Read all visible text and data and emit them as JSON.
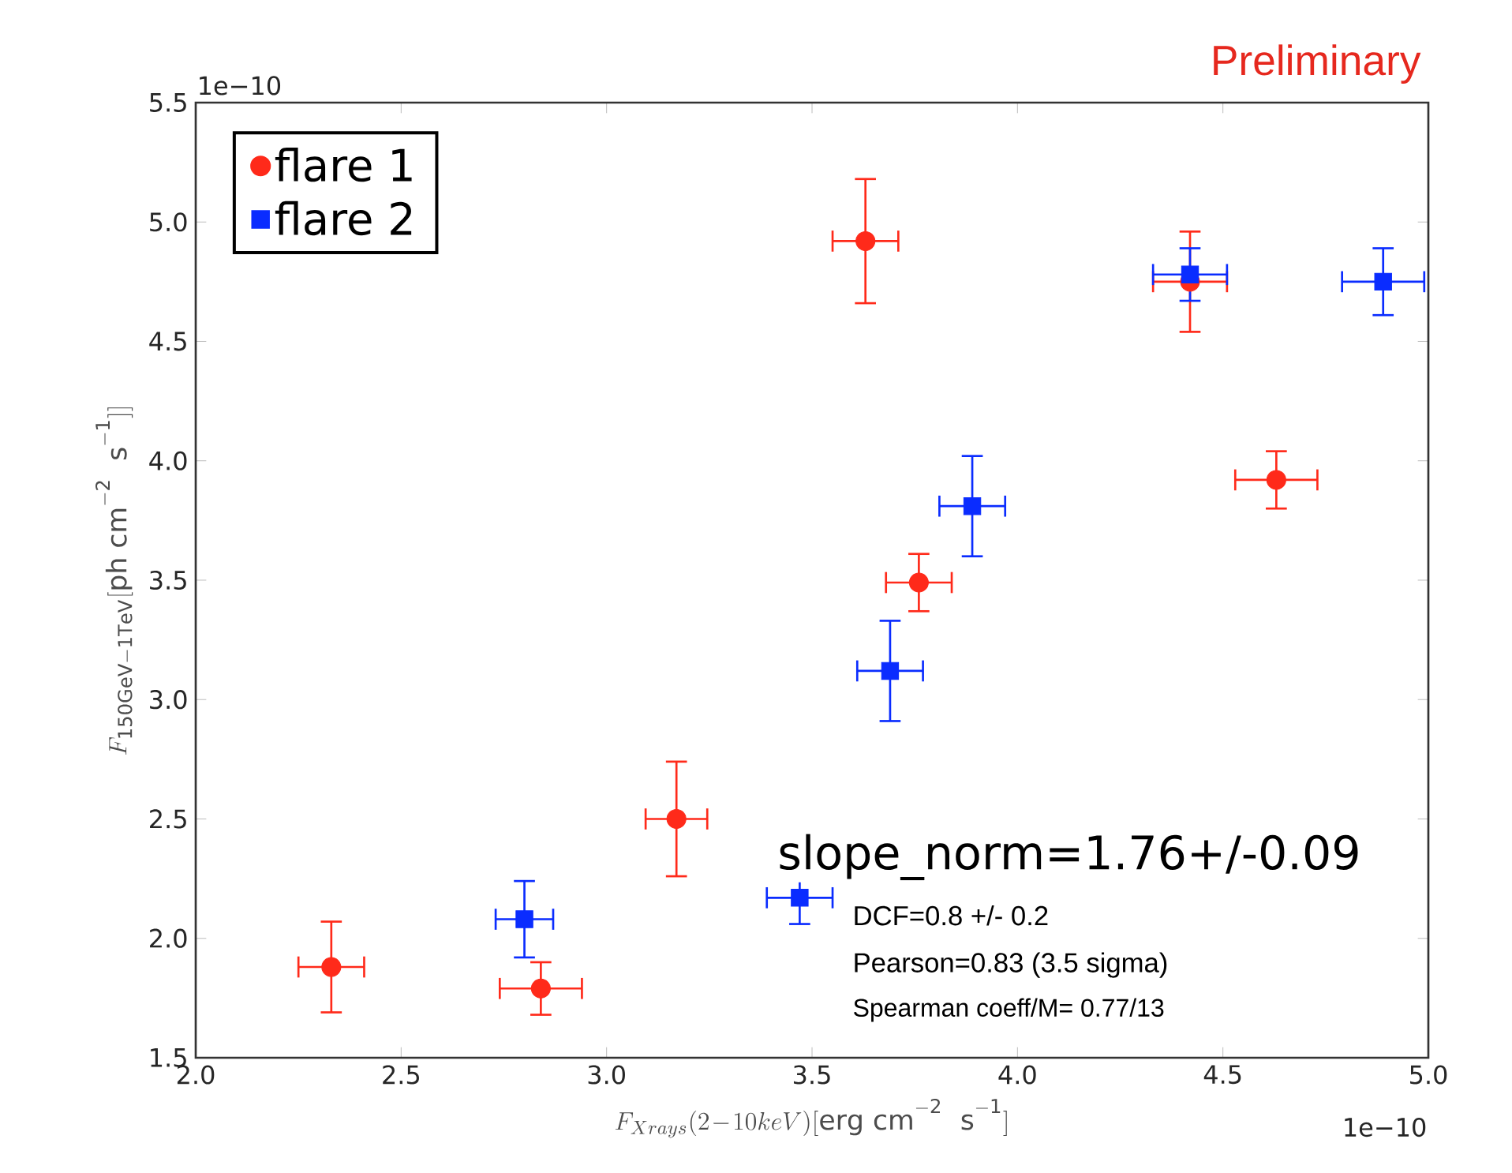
{
  "chart_data": {
    "type": "scatter",
    "xlabel": "F_{Xrays}(2\\!-\\!10keV)[\\mathrm{erg\\ cm^{-2}\\ \\ s^{-1}}]",
    "ylabel": "F_{\\mathrm{150GeV-1TeV}}[\\mathrm{ph\\ cm^{-2}\\ \\ s^{-1}}]]",
    "series": [
      {
        "name": "flare 1",
        "color": "#ff2a1a",
        "marker": "circle",
        "x": [
          2.33,
          2.84,
          3.17,
          3.76,
          3.63,
          4.42,
          4.63
        ],
        "values": [
          1.88,
          1.79,
          2.5,
          3.49,
          4.92,
          4.75,
          3.92
        ],
        "xerrors": [
          0.08,
          0.1,
          0.075,
          0.08,
          0.08,
          0.09,
          0.1
        ],
        "errors": [
          0.19,
          0.11,
          0.24,
          0.12,
          0.26,
          0.21,
          0.12
        ]
      },
      {
        "name": "flare 2",
        "color": "#0a2cff",
        "marker": "square",
        "x": [
          2.8,
          3.47,
          3.69,
          3.89,
          4.42,
          4.89
        ],
        "values": [
          2.08,
          2.17,
          3.12,
          3.81,
          4.78,
          4.75
        ],
        "xerrors": [
          0.07,
          0.08,
          0.08,
          0.08,
          0.09,
          0.1
        ],
        "errors": [
          0.16,
          0.11,
          0.21,
          0.21,
          0.11,
          0.14
        ]
      }
    ],
    "xlim": [
      2.0,
      5.0
    ],
    "ylim": [
      1.5,
      5.5
    ],
    "xticks": [
      {
        "value": 2.0,
        "label": "2.0"
      },
      {
        "value": 2.5,
        "label": "2.5"
      },
      {
        "value": 3.0,
        "label": "3.0"
      },
      {
        "value": 3.5,
        "label": "3.5"
      },
      {
        "value": 4.0,
        "label": "4.0"
      },
      {
        "value": 4.5,
        "label": "4.5"
      },
      {
        "value": 5.0,
        "label": "5.0"
      }
    ],
    "yticks": [
      {
        "value": 1.5,
        "label": "1.5"
      },
      {
        "value": 2.0,
        "label": "2.0"
      },
      {
        "value": 2.5,
        "label": "2.5"
      },
      {
        "value": 3.0,
        "label": "3.0"
      },
      {
        "value": 3.5,
        "label": "3.5"
      },
      {
        "value": 4.0,
        "label": "4.0"
      },
      {
        "value": 4.5,
        "label": "4.5"
      },
      {
        "value": 5.0,
        "label": "5.0"
      },
      {
        "value": 5.5,
        "label": "5.5"
      }
    ],
    "legend": "top left",
    "grid": false,
    "annotations": [
      "Preliminary",
      "1e−10",
      "1e−10",
      "slope_norm=1.76+/-0.09",
      "DCF=0.8 +/- 0.2",
      "Pearson=0.83 (3.5 sigma)",
      "Spearman coeff/M= 0.77/13"
    ]
  }
}
